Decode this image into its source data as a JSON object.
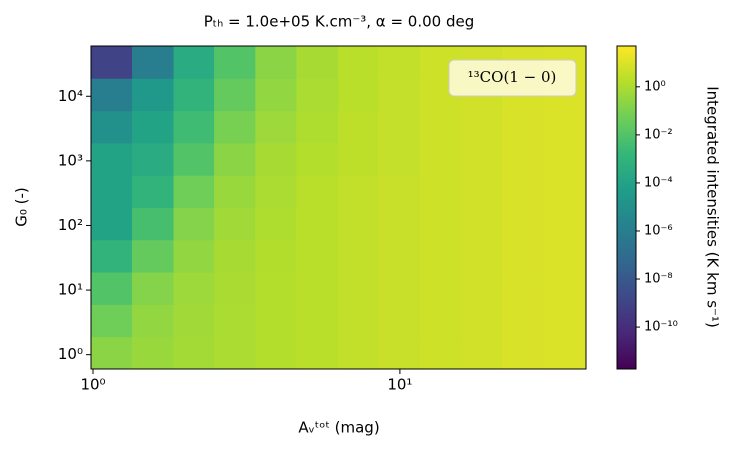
{
  "chart_data": {
    "type": "heatmap",
    "title": "Pₜₕ = 1.0e+05 K.cm⁻³, α = 0.00 deg",
    "x_label": "Aᵥᵗᵒᵗ (mag)",
    "y_label": "G₀ (-)",
    "colorbar_label": "Integrated intensities (K km s⁻¹)",
    "annotation": "¹³CO(1 − 0)",
    "x_log": true,
    "y_log": true,
    "color_log": true,
    "colormap": "viridis",
    "xlim": [
      0.985,
      40.4
    ],
    "ylim": [
      0.6,
      60000
    ],
    "xticks": [
      {
        "value": 1,
        "label": "10⁰"
      },
      {
        "value": 10,
        "label": "10¹"
      }
    ],
    "yticks": [
      {
        "value": 1,
        "label": "10⁰"
      },
      {
        "value": 10,
        "label": "10¹"
      },
      {
        "value": 100,
        "label": "10²"
      },
      {
        "value": 1000,
        "label": "10³"
      },
      {
        "value": 10000,
        "label": "10⁴"
      }
    ],
    "x_edges": [
      0.985,
      1.34,
      1.83,
      2.48,
      3.38,
      4.6,
      6.3,
      8.5,
      11.6,
      15.8,
      21.5,
      29.3,
      40.4
    ],
    "y_edges": [
      0.6,
      1.9,
      6,
      19,
      60,
      190,
      600,
      1900,
      6000,
      19000,
      60000
    ],
    "z": [
      [
        0.2,
        0.4,
        0.7,
        1,
        1.5,
        2,
        3,
        4,
        5,
        6,
        8,
        10
      ],
      [
        0.05,
        0.3,
        0.6,
        1,
        1.5,
        2,
        3,
        4,
        5,
        6,
        8,
        10
      ],
      [
        0.01,
        0.15,
        0.5,
        0.9,
        1.5,
        2,
        3,
        4,
        5,
        6,
        8,
        10
      ],
      [
        0.001,
        0.03,
        0.3,
        0.8,
        1.4,
        2,
        3,
        4,
        5,
        6,
        8,
        10
      ],
      [
        0.0001,
        0.005,
        0.15,
        0.6,
        1.2,
        2,
        3,
        4,
        5,
        6,
        8,
        10
      ],
      [
        0.0001,
        0.001,
        0.05,
        0.4,
        1,
        2,
        3,
        4,
        5,
        6,
        8,
        10
      ],
      [
        0.0001,
        0.0003,
        0.01,
        0.2,
        0.8,
        1.5,
        2.5,
        3.5,
        5,
        6,
        8,
        10
      ],
      [
        1e-05,
        0.0001,
        0.003,
        0.08,
        0.5,
        1.2,
        2.5,
        3.5,
        5,
        6,
        8,
        10
      ],
      [
        1e-06,
        3e-05,
        0.001,
        0.03,
        0.3,
        1,
        2,
        3.5,
        5,
        6,
        8,
        10
      ],
      [
        1e-09,
        1e-06,
        0.0003,
        0.01,
        0.2,
        0.8,
        2,
        3,
        5,
        6,
        8,
        10
      ]
    ],
    "clim": [
      1.8e-12,
      50
    ],
    "cticks": [
      {
        "value": 1e-10,
        "label": "10⁻¹⁰"
      },
      {
        "value": 1e-08,
        "label": "10⁻⁸"
      },
      {
        "value": 1e-06,
        "label": "10⁻⁶"
      },
      {
        "value": 0.0001,
        "label": "10⁻⁴"
      },
      {
        "value": 0.01,
        "label": "10⁻²"
      },
      {
        "value": 1,
        "label": "10⁰"
      }
    ]
  }
}
